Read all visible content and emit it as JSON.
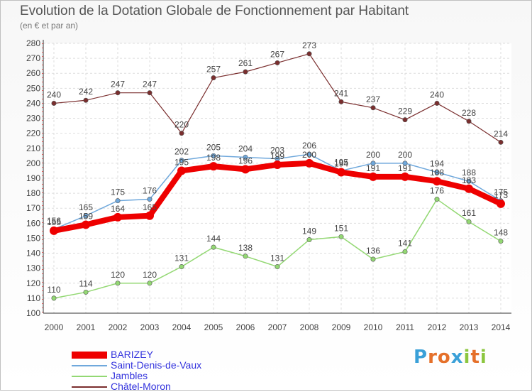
{
  "title": "Evolution de la Dotation Globale de Fonctionnement par Habitant",
  "subtitle": "(en € et par an)",
  "logo": {
    "text": "Proxiti",
    "letters": [
      {
        "ch": "P",
        "color": "#3aa0d8"
      },
      {
        "ch": "r",
        "color": "#e5702a"
      },
      {
        "ch": "o",
        "color": "#e5702a"
      },
      {
        "ch": "x",
        "color": "#3aa0d8"
      },
      {
        "ch": "i",
        "color": "#8cc63f"
      },
      {
        "ch": "t",
        "color": "#e5702a"
      },
      {
        "ch": "i",
        "color": "#8cc63f"
      }
    ]
  },
  "chart_data": {
    "type": "line",
    "title": "Evolution de la Dotation Globale de Fonctionnement par Habitant",
    "ylabel": "(en € et par an)",
    "x": [
      "2000",
      "2001",
      "2002",
      "2003",
      "2004",
      "2005",
      "2006",
      "2007",
      "2008",
      "2009",
      "2010",
      "2011",
      "2012",
      "2013",
      "2014"
    ],
    "ylim": [
      100,
      280
    ],
    "yticks": [
      100,
      110,
      120,
      130,
      140,
      150,
      160,
      170,
      180,
      190,
      200,
      210,
      220,
      230,
      240,
      250,
      260,
      270,
      280
    ],
    "grid": true,
    "legend_position": "bottom-left",
    "series": [
      {
        "name": "BARIZEY",
        "color": "#ee0000",
        "values": [
          155,
          159,
          164,
          165,
          195,
          198,
          196,
          199,
          200,
          194,
          191,
          191,
          188,
          183,
          173
        ]
      },
      {
        "name": "Saint-Denis-de-Vaux",
        "color": "#6fa8dc",
        "values": [
          156,
          165,
          175,
          176,
          202,
          205,
          204,
          203,
          206,
          195,
          200,
          200,
          194,
          188,
          175
        ]
      },
      {
        "name": "Jambles",
        "color": "#93d873",
        "values": [
          110,
          114,
          120,
          120,
          131,
          144,
          138,
          131,
          149,
          151,
          136,
          141,
          176,
          161,
          148
        ]
      },
      {
        "name": "Châtel-Moron",
        "color": "#7a2e2e",
        "values": [
          240,
          242,
          247,
          247,
          220,
          257,
          261,
          267,
          273,
          241,
          237,
          229,
          240,
          228,
          214
        ]
      }
    ]
  }
}
